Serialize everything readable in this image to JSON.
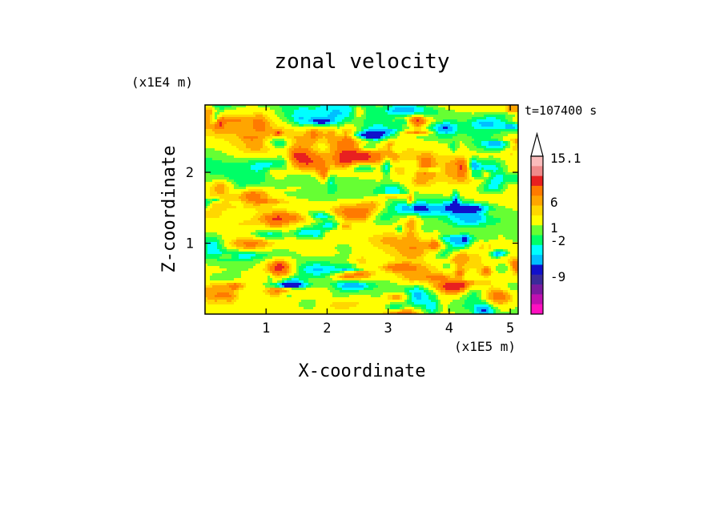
{
  "chart_data": {
    "type": "heatmap",
    "title": "zonal velocity",
    "xlabel": "X-coordinate",
    "ylabel": "Z-coordinate",
    "x_unit": "(x1E5 m)",
    "y_unit": "(x1E4 m)",
    "time_label": "t=107400 s",
    "xlim": [
      0,
      5.13
    ],
    "ylim": [
      0,
      2.95
    ],
    "x_ticks": [
      1,
      2,
      3,
      4,
      5
    ],
    "x_tick_labels": [
      "1",
      "2",
      "3",
      "4",
      "5"
    ],
    "y_ticks": [
      1,
      2
    ],
    "y_tick_labels": [
      "1",
      "2"
    ],
    "grid": false,
    "colorbar": {
      "levels": [
        "15.1",
        "6",
        "1",
        "-2",
        "-9"
      ],
      "colors_top_to_bottom": [
        "#fbbcbc",
        "#f08a8a",
        "#e82020",
        "#ff7a00",
        "#ffa500",
        "#ffd700",
        "#ffff00",
        "#66ff33",
        "#00ff66",
        "#00ffff",
        "#00bfff",
        "#1010cc",
        "#3a2a9a",
        "#7a1aa0",
        "#c010b0",
        "#ff10c0"
      ]
    },
    "palette": {
      "pink": "#ff10c0",
      "magenta": "#c010b0",
      "purple": "#7a1aa0",
      "indigo": "#3a2a9a",
      "blue": "#1010cc",
      "sky": "#00bfff",
      "cyan": "#00ffff",
      "green": "#00ff66",
      "lightgreen": "#66ff33",
      "yellow": "#ffff00",
      "gold": "#ffd700",
      "orange": "#ffa500",
      "darkorange": "#ff7a00",
      "red": "#e82020",
      "salmon": "#f08a8a",
      "lightpink": "#fbbcbc"
    },
    "field_description": "background yellow/green; orange and cyan bands; scattered blue cores"
  }
}
